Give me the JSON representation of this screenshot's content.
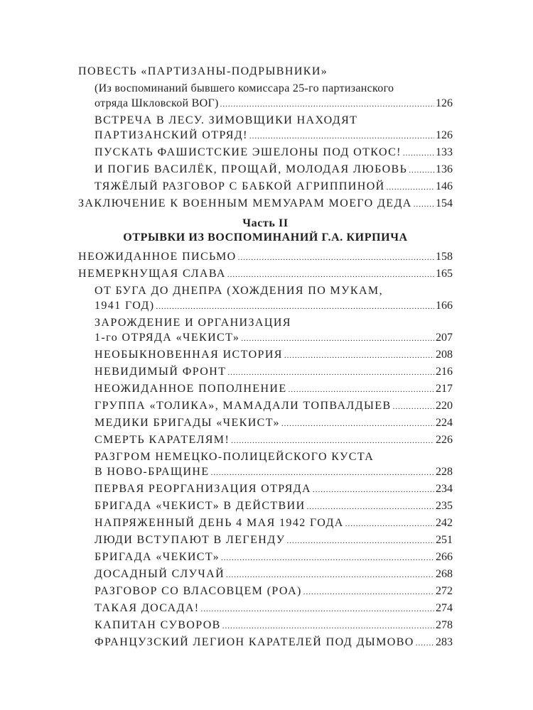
{
  "entries_top": [
    {
      "lines": [
        "ПОВЕСТЬ «ПАРТИЗАНЫ-ПОДРЫВНИКИ»"
      ],
      "page": "",
      "level": 0
    },
    {
      "lines": [
        "(Из воспоминаний бывшего комиссара 25-го партизанского",
        "отряда Шкловской ВОГ)"
      ],
      "page": "126",
      "level": 1,
      "note": true
    },
    {
      "lines": [
        "ВСТРЕЧА В ЛЕСУ. ЗИМОВЩИКИ НАХОДЯТ",
        "ПАРТИЗАНСКИЙ ОТРЯД!"
      ],
      "page": "126",
      "level": 1
    },
    {
      "lines": [
        "ПУСКАТЬ ФАШИСТСКИЕ ЭШЕЛОНЫ ПОД ОТКОС!"
      ],
      "page": "133",
      "level": 1
    },
    {
      "lines": [
        "И ПОГИБ ВАСИЛЁК, ПРОЩАЙ, МОЛОДАЯ ЛЮБОВЬ"
      ],
      "page": "136",
      "level": 1
    },
    {
      "lines": [
        "ТЯЖЁЛЫЙ РАЗГОВОР С БАБКОЙ АГРИППИНОЙ"
      ],
      "page": "146",
      "level": 1
    },
    {
      "lines": [
        "ЗАКЛЮЧЕНИЕ К ВОЕННЫМ МЕМУАРАМ МОЕГО ДЕДА"
      ],
      "page": "154",
      "level": 0
    }
  ],
  "part": {
    "label": "Часть II",
    "title": "ОТРЫВКИ ИЗ ВОСПОМИНАНИЙ Г.А. КИРПИЧА"
  },
  "entries_part2": [
    {
      "lines": [
        "НЕОЖИДАННОЕ ПИСЬМО"
      ],
      "page": "158",
      "level": 0
    },
    {
      "lines": [
        "НЕМЕРКНУЩАЯ СЛАВА"
      ],
      "page": "165",
      "level": 0
    },
    {
      "lines": [
        "ОТ БУГА ДО ДНЕПРА (ХОЖДЕНИЯ ПО МУКАМ,",
        "1941 ГОД)"
      ],
      "page": "166",
      "level": 1
    },
    {
      "lines": [
        "ЗАРОЖДЕНИЕ И ОРГАНИЗАЦИЯ",
        "1-го ОТРЯДА «ЧЕКИСТ»"
      ],
      "page": "207",
      "level": 1
    },
    {
      "lines": [
        "НЕОБЫКНОВЕННАЯ ИСТОРИЯ"
      ],
      "page": "208",
      "level": 1
    },
    {
      "lines": [
        "НЕВИДИМЫЙ ФРОНТ"
      ],
      "page": "216",
      "level": 1
    },
    {
      "lines": [
        "НЕОЖИДАННОЕ ПОПОЛНЕНИЕ"
      ],
      "page": "217",
      "level": 1
    },
    {
      "lines": [
        "ГРУППА «ТОЛИКА», МАМАДАЛИ ТОПВАЛДЫЕВ"
      ],
      "page": "220",
      "level": 1
    },
    {
      "lines": [
        "МЕДИКИ БРИГАДЫ «ЧЕКИСТ»"
      ],
      "page": "224",
      "level": 1
    },
    {
      "lines": [
        "СМЕРТЬ КАРАТЕЛЯМ!"
      ],
      "page": "226",
      "level": 1
    },
    {
      "lines": [
        "РАЗГРОМ НЕМЕЦКО-ПОЛИЦЕЙСКОГО КУСТА",
        "В НОВО-БРАЩИНЕ"
      ],
      "page": "228",
      "level": 1
    },
    {
      "lines": [
        "ПЕРВАЯ РЕОРГАНИЗАЦИЯ ОТРЯДА"
      ],
      "page": "234",
      "level": 1
    },
    {
      "lines": [
        "БРИГАДА «ЧЕКИСТ» В ДЕЙСТВИИ"
      ],
      "page": "235",
      "level": 1
    },
    {
      "lines": [
        "НАПРЯЖЕННЫЙ ДЕНЬ 4 МАЯ 1942 ГОДА"
      ],
      "page": "242",
      "level": 1
    },
    {
      "lines": [
        "ЛЮДИ ВСТУПАЮТ В ЛЕГЕНДУ"
      ],
      "page": "251",
      "level": 1
    },
    {
      "lines": [
        "БРИГАДА «ЧЕКИСТ»"
      ],
      "page": "266",
      "level": 1
    },
    {
      "lines": [
        "ДОСАДНЫЙ СЛУЧАЙ"
      ],
      "page": "268",
      "level": 1
    },
    {
      "lines": [
        "РАЗГОВОР СО ВЛАСОВЦЕМ (РОА)"
      ],
      "page": "272",
      "level": 1
    },
    {
      "lines": [
        "ТАКАЯ ДОСАДА!"
      ],
      "page": "274",
      "level": 1
    },
    {
      "lines": [
        "КАПИТАН СУВОРОВ"
      ],
      "page": "278",
      "level": 1
    },
    {
      "lines": [
        "ФРАНЦУЗСКИЙ ЛЕГИОН КАРАТЕЛЕЙ ПОД ДЫМОВО"
      ],
      "page": "283",
      "level": 1
    }
  ]
}
